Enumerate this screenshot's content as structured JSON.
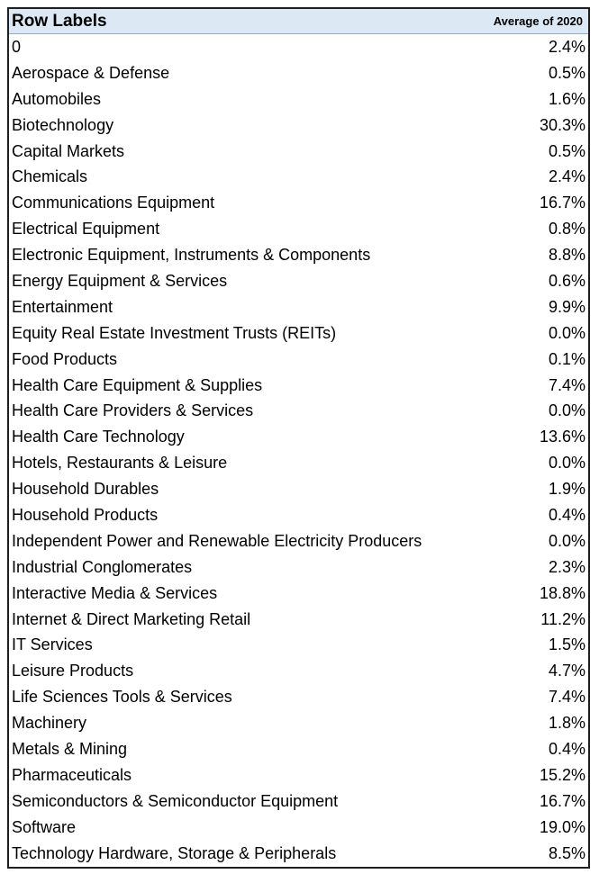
{
  "header": {
    "row_labels": "Row Labels",
    "value_label": "Average of 2020"
  },
  "rows": [
    {
      "label": "0",
      "value": "2.4%"
    },
    {
      "label": "Aerospace & Defense",
      "value": "0.5%"
    },
    {
      "label": "Automobiles",
      "value": "1.6%"
    },
    {
      "label": "Biotechnology",
      "value": "30.3%"
    },
    {
      "label": "Capital Markets",
      "value": "0.5%"
    },
    {
      "label": "Chemicals",
      "value": "2.4%"
    },
    {
      "label": "Communications Equipment",
      "value": "16.7%"
    },
    {
      "label": "Electrical Equipment",
      "value": "0.8%"
    },
    {
      "label": "Electronic Equipment, Instruments & Components",
      "value": "8.8%"
    },
    {
      "label": "Energy Equipment & Services",
      "value": "0.6%"
    },
    {
      "label": "Entertainment",
      "value": "9.9%"
    },
    {
      "label": "Equity Real Estate Investment Trusts (REITs)",
      "value": "0.0%"
    },
    {
      "label": "Food Products",
      "value": "0.1%"
    },
    {
      "label": "Health Care Equipment & Supplies",
      "value": "7.4%"
    },
    {
      "label": "Health Care Providers & Services",
      "value": "0.0%"
    },
    {
      "label": "Health Care Technology",
      "value": "13.6%"
    },
    {
      "label": "Hotels, Restaurants & Leisure",
      "value": "0.0%"
    },
    {
      "label": "Household Durables",
      "value": "1.9%"
    },
    {
      "label": "Household Products",
      "value": "0.4%"
    },
    {
      "label": "Independent Power and Renewable Electricity Producers",
      "value": "0.0%"
    },
    {
      "label": "Industrial Conglomerates",
      "value": "2.3%"
    },
    {
      "label": "Interactive Media & Services",
      "value": "18.8%"
    },
    {
      "label": "Internet & Direct Marketing Retail",
      "value": "11.2%"
    },
    {
      "label": "IT Services",
      "value": "1.5%"
    },
    {
      "label": "Leisure Products",
      "value": "4.7%"
    },
    {
      "label": "Life Sciences Tools & Services",
      "value": "7.4%"
    },
    {
      "label": "Machinery",
      "value": "1.8%"
    },
    {
      "label": "Metals & Mining",
      "value": "0.4%"
    },
    {
      "label": "Pharmaceuticals",
      "value": "15.2%"
    },
    {
      "label": "Semiconductors & Semiconductor Equipment",
      "value": "16.7%"
    },
    {
      "label": "Software",
      "value": "19.0%"
    },
    {
      "label": "Technology Hardware, Storage & Peripherals",
      "value": "8.5%"
    }
  ]
}
